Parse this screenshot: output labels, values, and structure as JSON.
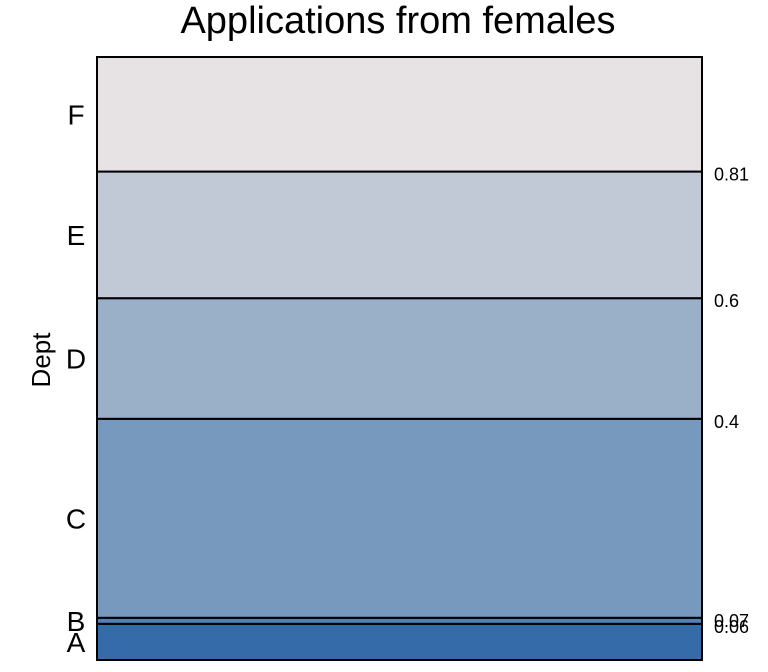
{
  "chart_data": {
    "type": "bar",
    "title": "Applications from females",
    "ylabel": "Dept",
    "categories": [
      "A",
      "B",
      "C",
      "D",
      "E",
      "F"
    ],
    "cumulative_boundaries": [
      0.06,
      0.07,
      0.4,
      0.6,
      0.81
    ],
    "boundary_labels": [
      "0.06",
      "0.07",
      "0.4",
      "0.6",
      "0.81"
    ],
    "colors": [
      "#356ba8",
      "#5182b5",
      "#7799bd",
      "#9ab0c9",
      "#c1c9d7",
      "#e7e2e3"
    ]
  }
}
